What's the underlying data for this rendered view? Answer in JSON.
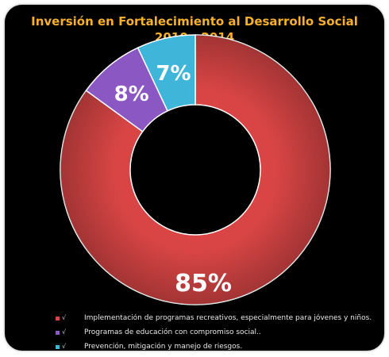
{
  "header": {
    "title_line1": "Inversión en Fortalecimiento al Desarrollo Social",
    "title_line2": "2010 - 2014"
  },
  "chart_data": {
    "type": "pie",
    "donut": true,
    "title": "Inversión en Fortalecimiento al Desarrollo Social 2010 - 2014",
    "legend_position": "bottom",
    "slices": [
      {
        "label": "Implementación de programas recreativos, especialmente para jóvenes y niños.",
        "value": 85,
        "display": "85%",
        "color": "#d94545"
      },
      {
        "label": "Programas de educación con compromiso social..",
        "value": 8,
        "display": "8%",
        "color": "#8a57c3"
      },
      {
        "label": "Prevención, mitigación y manejo de riesgos.",
        "value": 7,
        "display": "7%",
        "color": "#3fb5d9"
      }
    ]
  },
  "legend": {
    "marker": "√",
    "items": [
      "Implementación de programas recreativos, especialmente para jóvenes y niños.",
      "Programas de educación con compromiso social..",
      "Prevención, mitigación y manejo de riesgos."
    ]
  },
  "colors": {
    "background": "#000000",
    "title": "#f7b02c",
    "label": "#ffffff"
  }
}
